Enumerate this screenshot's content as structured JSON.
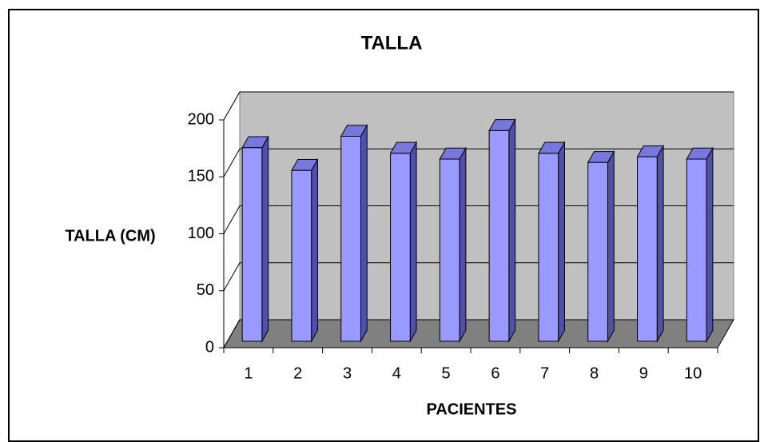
{
  "chart_data": {
    "type": "bar3d",
    "title": "TALLA",
    "xlabel": "PACIENTES",
    "ylabel": "TALLA (CM)",
    "categories": [
      "1",
      "2",
      "3",
      "4",
      "5",
      "6",
      "7",
      "8",
      "9",
      "10"
    ],
    "values": [
      170,
      150,
      180,
      165,
      160,
      185,
      165,
      157,
      162,
      160
    ],
    "color": "#9999ff",
    "ylim": [
      0,
      200
    ],
    "yticks": [
      0,
      50,
      100,
      150,
      200
    ],
    "grid": true
  }
}
